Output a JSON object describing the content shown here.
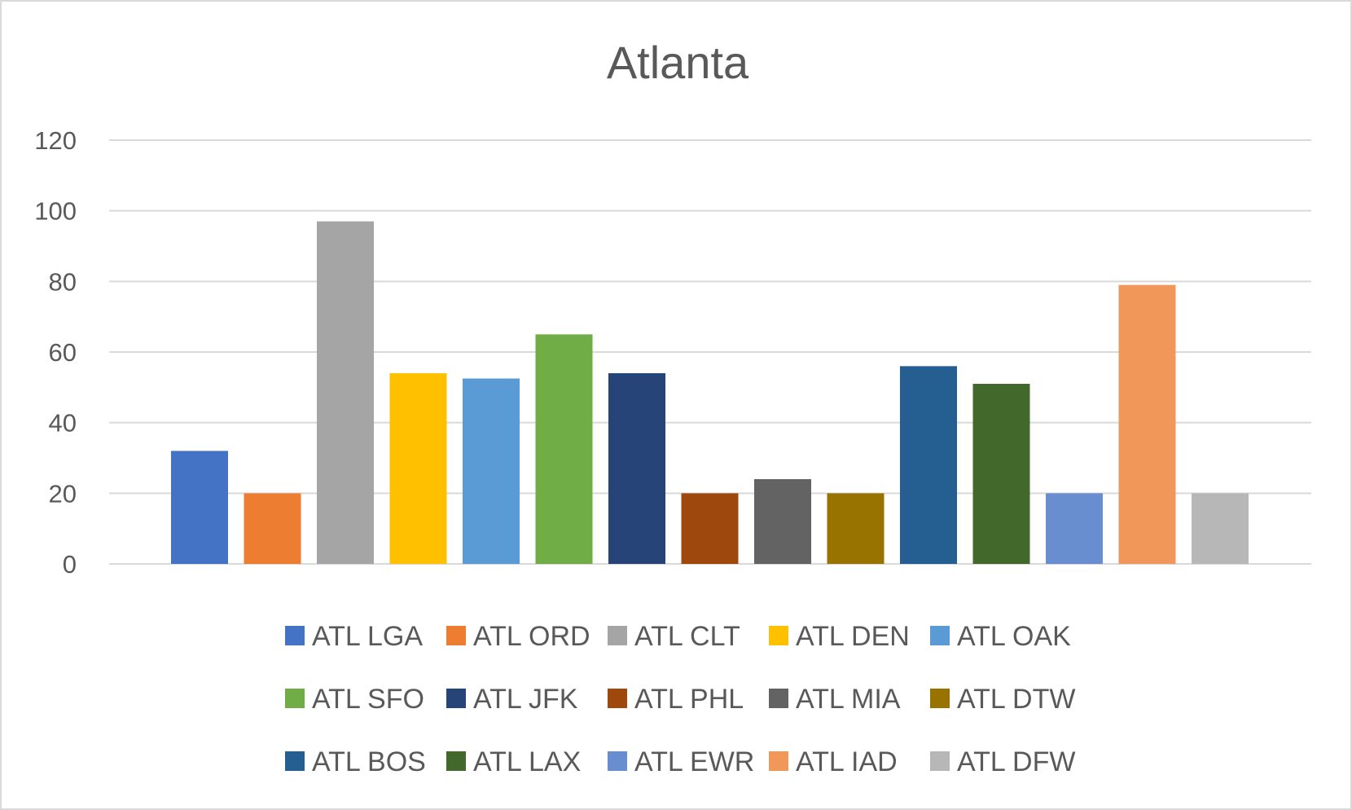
{
  "chart_data": {
    "type": "bar",
    "title": "Atlanta",
    "xlabel": "",
    "ylabel": "",
    "ylim": [
      0,
      120
    ],
    "yticks": [
      0,
      20,
      40,
      60,
      80,
      100,
      120
    ],
    "grid": true,
    "legend_position": "bottom",
    "categories": [
      ""
    ],
    "series": [
      {
        "name": "ATL LGA",
        "values": [
          32
        ],
        "color": "#4472c4"
      },
      {
        "name": "ATL ORD",
        "values": [
          20
        ],
        "color": "#ed7d31"
      },
      {
        "name": "ATL CLT",
        "values": [
          97
        ],
        "color": "#a5a5a5"
      },
      {
        "name": "ATL DEN",
        "values": [
          54
        ],
        "color": "#ffc000"
      },
      {
        "name": "ATL OAK",
        "values": [
          52.5
        ],
        "color": "#5b9bd5"
      },
      {
        "name": "ATL SFO",
        "values": [
          65
        ],
        "color": "#70ad47"
      },
      {
        "name": "ATL JFK",
        "values": [
          54
        ],
        "color": "#264478"
      },
      {
        "name": "ATL PHL",
        "values": [
          20
        ],
        "color": "#9e480e"
      },
      {
        "name": "ATL MIA",
        "values": [
          24
        ],
        "color": "#636363"
      },
      {
        "name": "ATL DTW",
        "values": [
          20
        ],
        "color": "#997300"
      },
      {
        "name": "ATL BOS",
        "values": [
          56
        ],
        "color": "#255e91"
      },
      {
        "name": "ATL LAX",
        "values": [
          51
        ],
        "color": "#43682b"
      },
      {
        "name": "ATL EWR",
        "values": [
          20
        ],
        "color": "#698ed0"
      },
      {
        "name": "ATL IAD",
        "values": [
          79
        ],
        "color": "#f1975a"
      },
      {
        "name": "ATL DFW",
        "values": [
          20
        ],
        "color": "#b7b7b7"
      }
    ]
  }
}
